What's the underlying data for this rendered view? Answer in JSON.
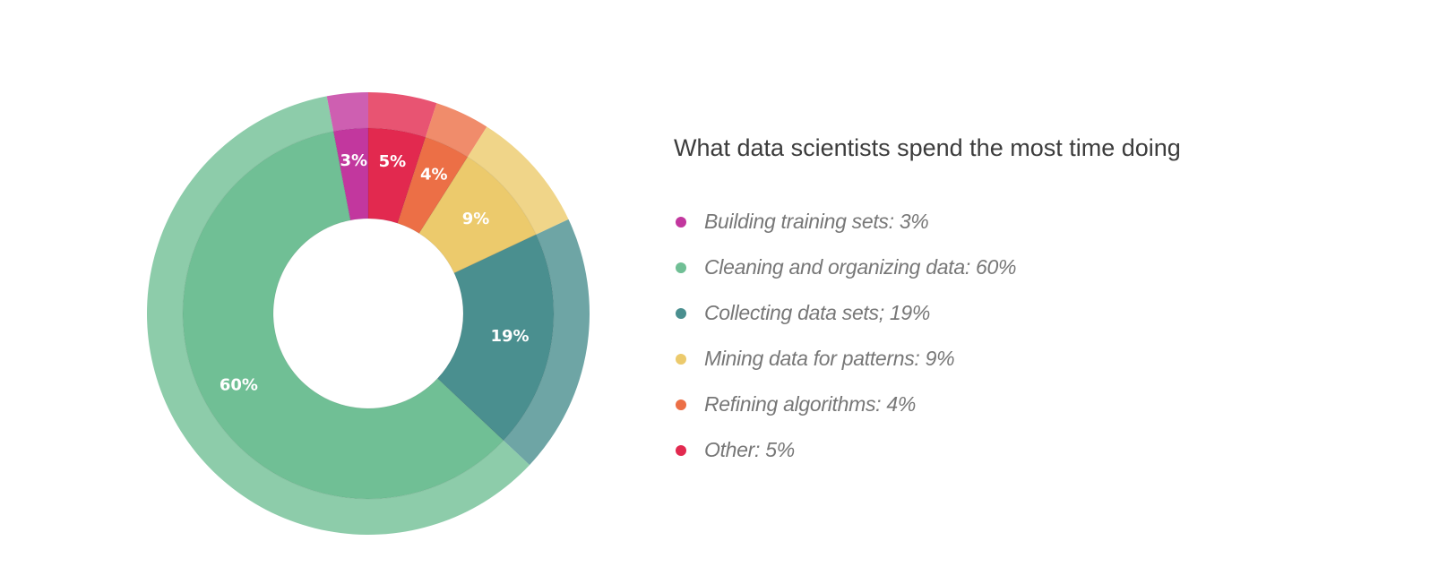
{
  "chart_data": {
    "type": "pie",
    "donut": true,
    "title": "What data scientists spend the most time doing",
    "slices": [
      {
        "label": "Other",
        "legend": "Other: 5%",
        "value": 5,
        "display": "5%",
        "color": "#e2294f"
      },
      {
        "label": "Refining algorithms",
        "legend": "Refining algorithms: 4%",
        "value": 4,
        "display": "4%",
        "color": "#ec6f46"
      },
      {
        "label": "Mining data for patterns",
        "legend": "Mining data for patterns: 9%",
        "value": 9,
        "display": "9%",
        "color": "#ecca6c"
      },
      {
        "label": "Collecting data sets",
        "legend": "Collecting data sets; 19%",
        "value": 19,
        "display": "19%",
        "color": "#4a8f8f"
      },
      {
        "label": "Cleaning and organizing data",
        "legend": "Cleaning and organizing data: 60%",
        "value": 60,
        "display": "60%",
        "color": "#70bf95"
      },
      {
        "label": "Building training sets",
        "legend": "Building training sets: 3%",
        "value": 3,
        "display": "3%",
        "color": "#c2379e"
      }
    ],
    "legend_order": [
      5,
      4,
      3,
      2,
      1,
      0
    ],
    "legend_placement": "right"
  }
}
